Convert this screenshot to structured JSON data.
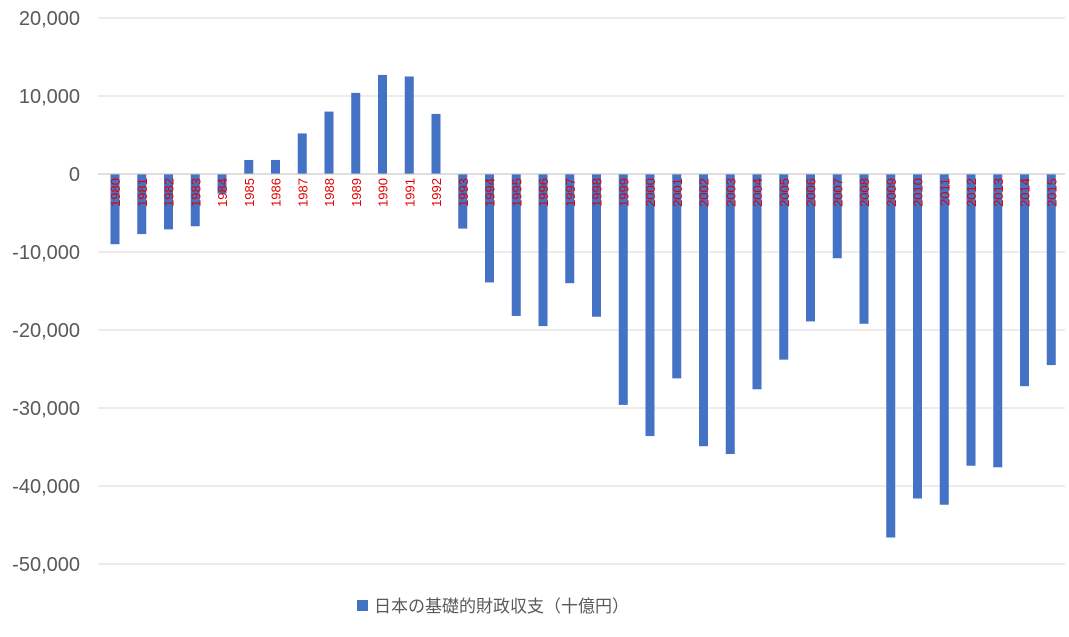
{
  "chart_data": {
    "type": "bar",
    "ylim": [
      -50000,
      20000
    ],
    "yticks": [
      20000,
      10000,
      0,
      -10000,
      -20000,
      -30000,
      -40000,
      -50000
    ],
    "ytick_labels": [
      "20,000",
      "10,000",
      "0",
      "-10,000",
      "-20,000",
      "-30,000",
      "-40,000",
      "-50,000"
    ],
    "grid": true,
    "legend_position": "bottom-center",
    "categories": [
      "1980",
      "1981",
      "1982",
      "1983",
      "1984",
      "1985",
      "1986",
      "1987",
      "1988",
      "1989",
      "1990",
      "1991",
      "1992",
      "1993",
      "1994",
      "1995",
      "1996",
      "1997",
      "1998",
      "1999",
      "2000",
      "2001",
      "2002",
      "2003",
      "2004",
      "2005",
      "2006",
      "2007",
      "2008",
      "2009",
      "2010",
      "2011",
      "2012",
      "2013",
      "2014",
      "2015"
    ],
    "series": [
      {
        "name": "日本の基礎的財政収支（十億円）",
        "color": "#4472c4",
        "values": [
          -9000,
          -7700,
          -7100,
          -6700,
          -2500,
          1800,
          1800,
          5200,
          8000,
          10400,
          12700,
          12500,
          7700,
          -7000,
          -13900,
          -18200,
          -19500,
          -14000,
          -18300,
          -29600,
          -33600,
          -26200,
          -34900,
          -35900,
          -27600,
          -23800,
          -18900,
          -10800,
          -19200,
          -46600,
          -41600,
          -42400,
          -37400,
          -37600,
          -27200,
          -24500
        ]
      }
    ],
    "tick_label_color": "#e00000",
    "grid_color": "#d9d9d9"
  }
}
